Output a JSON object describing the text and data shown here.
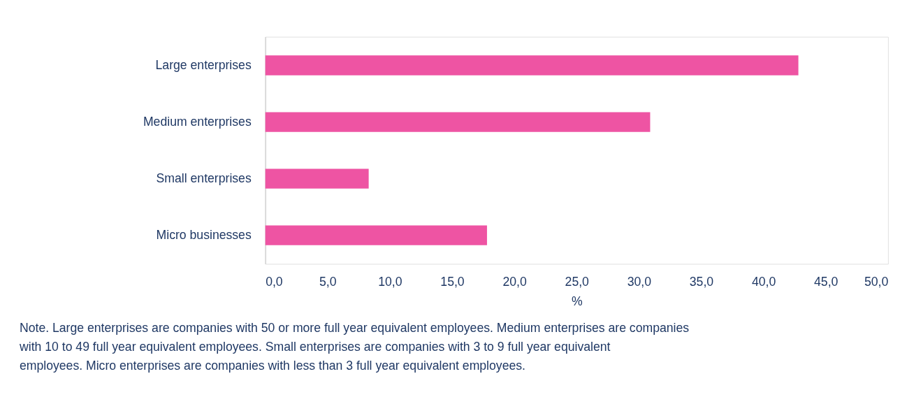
{
  "chart_data": {
    "type": "bar",
    "orientation": "horizontal",
    "xlabel": "%",
    "categories": [
      "Large enterprises",
      "Medium enterprises",
      "Small enterprises",
      "Micro businesses"
    ],
    "values": [
      42.8,
      30.9,
      8.3,
      17.8
    ],
    "color": "#ee54a3",
    "xlim": [
      0,
      50
    ],
    "xticks": [
      {
        "value": 0,
        "label": "0,0"
      },
      {
        "value": 5,
        "label": "5,0"
      },
      {
        "value": 10,
        "label": "10,0"
      },
      {
        "value": 15,
        "label": "15,0"
      },
      {
        "value": 20,
        "label": "20,0"
      },
      {
        "value": 25,
        "label": "25,0"
      },
      {
        "value": 30,
        "label": "30,0"
      },
      {
        "value": 35,
        "label": "35,0"
      },
      {
        "value": 40,
        "label": "40,0"
      },
      {
        "value": 45,
        "label": "45,0"
      },
      {
        "value": 50,
        "label": "50,0"
      }
    ],
    "grid": false,
    "annotations": [
      "Note. Large enterprises are companies with 50 or more full year equivalent employees. Medium enterprises are companies with 10 to 49 full year equivalent employees. Small enterprises are companies with 3 to 9 full year equivalent employees. Micro enterprises are companies with less than 3 full year equivalent employees."
    ]
  }
}
